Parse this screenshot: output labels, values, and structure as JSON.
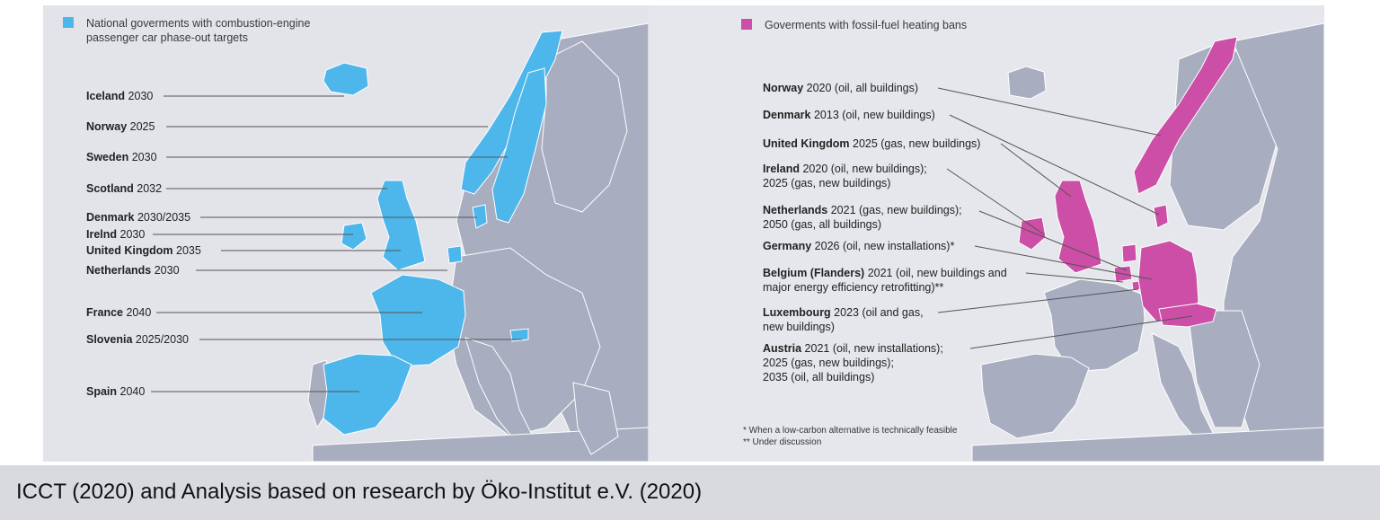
{
  "colors": {
    "left_highlight": "#4db6ea",
    "right_highlight": "#cc4ea6",
    "land": "#a8adc0",
    "sea": "#e2e4ea",
    "border": "#ffffff",
    "leader": "#555555"
  },
  "left_map": {
    "legend": "National goverments with combustion-engine passenger car phase-out targets",
    "legend_line1": "National goverments with combustion-engine",
    "legend_line2": "passenger car phase-out targets",
    "labels": [
      {
        "name": "Iceland",
        "value": "2030"
      },
      {
        "name": "Norway",
        "value": "2025"
      },
      {
        "name": "Sweden",
        "value": "2030"
      },
      {
        "name": "Scotland",
        "value": "2032"
      },
      {
        "name": "Denmark",
        "value": "2030/2035"
      },
      {
        "name": "Irelnd",
        "value": "2030"
      },
      {
        "name": "United Kingdom",
        "value": "2035"
      },
      {
        "name": "Netherlands",
        "value": "2030"
      },
      {
        "name": "France",
        "value": "2040"
      },
      {
        "name": "Slovenia",
        "value": "2025/2030"
      },
      {
        "name": "Spain",
        "value": "2040"
      }
    ]
  },
  "right_map": {
    "legend": "Goverments with fossil-fuel heating bans",
    "labels": [
      {
        "name": "Norway",
        "line1": "2020 (oil, all buildings)",
        "line2": "",
        "line3": ""
      },
      {
        "name": "Denmark",
        "line1": "2013 (oil, new buildings)",
        "line2": "",
        "line3": ""
      },
      {
        "name": "United Kingdom",
        "line1": "2025 (gas, new buildings)",
        "line2": "",
        "line3": ""
      },
      {
        "name": "Ireland",
        "line1": "2020 (oil, new buildings);",
        "line2": "2025 (gas, new buildings)",
        "line3": ""
      },
      {
        "name": "Netherlands",
        "line1": "2021 (gas, new buildings);",
        "line2": "2050 (gas, all buildings)",
        "line3": ""
      },
      {
        "name": "Germany",
        "line1": "2026 (oil, new installations)*",
        "line2": "",
        "line3": ""
      },
      {
        "name": "Belgium (Flanders)",
        "line1": "2021 (oil, new buildings and",
        "line2": "major energy efficiency retrofitting)**",
        "line3": ""
      },
      {
        "name": "Luxembourg",
        "line1": "2023 (oil and gas,",
        "line2": "new buildings)",
        "line3": ""
      },
      {
        "name": "Austria",
        "line1": "2021 (oil, new installations);",
        "line2": "2025 (gas, new buildings);",
        "line3": "2035 (oil, all buildings)"
      }
    ],
    "footnote1": "* When a low-carbon alternative is technically feasible",
    "footnote2": "** Under discussion"
  },
  "caption": "ICCT (2020) and Analysis based on research by Öko-Institut e.V. (2020)"
}
